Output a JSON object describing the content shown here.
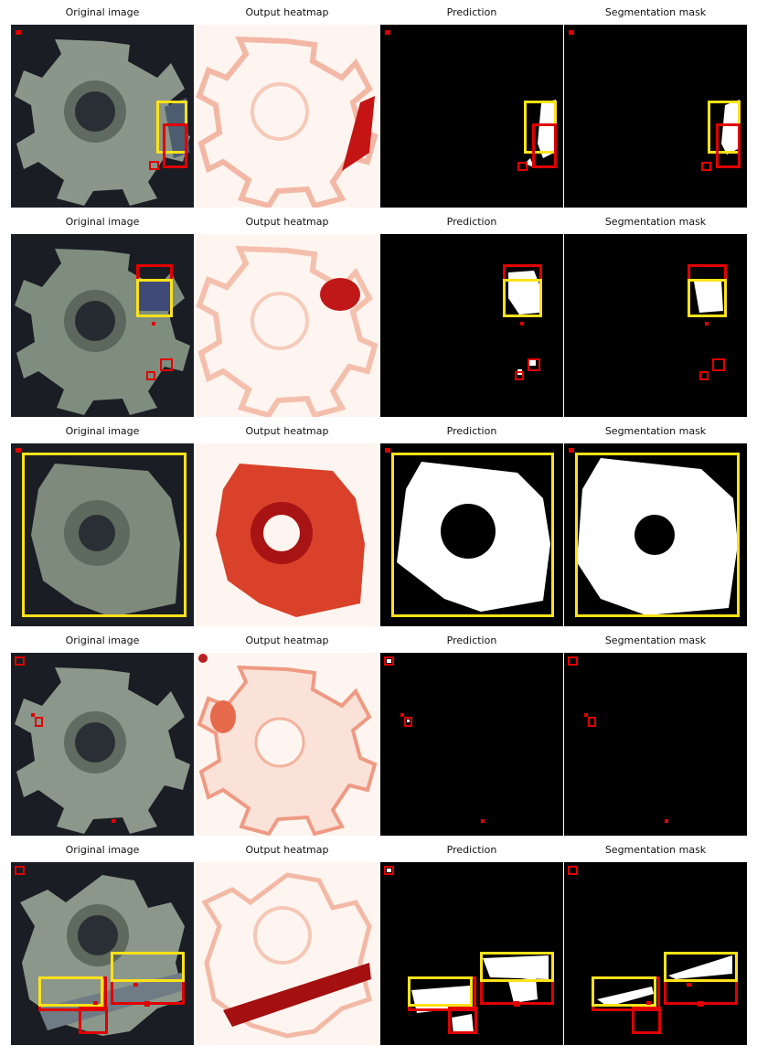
{
  "panel_titles": {
    "original": "Original image",
    "heatmap": "Output heatmap",
    "prediction": "Prediction",
    "mask": "Segmentation mask"
  },
  "colors": {
    "gt_box": "#e00000",
    "pred_box": "#ffe21a",
    "heat_low": "#fff5f0",
    "heat_high": "#b30000",
    "image_bg": "#1a1d24",
    "mask_bg": "#000000",
    "mask_fg": "#ffffff"
  }
}
